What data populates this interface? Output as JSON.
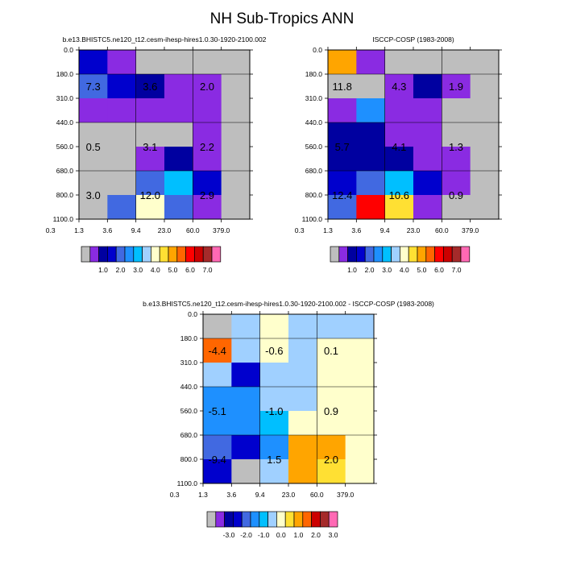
{
  "title": "NH Sub-Tropics ANN",
  "colors": {
    "missing": "#bebebe",
    "abs_scale": [
      "#8a2be2",
      "#0000a0",
      "#0000cd",
      "#4169e1",
      "#1e90ff",
      "#00bfff",
      "#a0d0ff",
      "#ffffcc",
      "#ffe033",
      "#ffa500",
      "#ff6600",
      "#ff0000",
      "#cc0000",
      "#a52a2a",
      "#ff69b4"
    ],
    "diff_scale": [
      "#8a2be2",
      "#0000a0",
      "#0000cd",
      "#4169e1",
      "#1e90ff",
      "#00bfff",
      "#a0d0ff",
      "#ffffcc",
      "#ffe033",
      "#ffa500",
      "#ff6600",
      "#cc0000",
      "#a52a2a",
      "#ff69b4"
    ]
  },
  "chart_data": [
    {
      "type": "heatmap",
      "title": "b.e13.BHISTC5.ne120_t12.cesm-ihesp-hires1.0.30-1920-2100.002",
      "x_ticks": [
        "0.3",
        "1.3",
        "3.6",
        "9.4",
        "23.0",
        "60.0",
        "379.0"
      ],
      "y_ticks": [
        "0.0",
        "180.0",
        "310.0",
        "440.0",
        "560.0",
        "680.0",
        "800.0",
        "1100.0"
      ],
      "cell_colors": [
        [
          "#0000cd",
          "#8a2be2",
          "#bebebe",
          "#bebebe",
          "#bebebe",
          "#bebebe"
        ],
        [
          "#4169e1",
          "#0000cd",
          "#0000a0",
          "#8a2be2",
          "#8a2be2",
          "#bebebe"
        ],
        [
          "#8a2be2",
          "#8a2be2",
          "#8a2be2",
          "#8a2be2",
          "#8a2be2",
          "#bebebe"
        ],
        [
          "#bebebe",
          "#bebebe",
          "#bebebe",
          "#bebebe",
          "#8a2be2",
          "#bebebe"
        ],
        [
          "#bebebe",
          "#bebebe",
          "#8a2be2",
          "#0000a0",
          "#8a2be2",
          "#bebebe"
        ],
        [
          "#bebebe",
          "#bebebe",
          "#4169e1",
          "#00bfff",
          "#0000cd",
          "#bebebe"
        ],
        [
          "#bebebe",
          "#4169e1",
          "#ffffcc",
          "#4169e1",
          "#8a2be2",
          "#bebebe"
        ]
      ],
      "labels": [
        {
          "text": "7.3",
          "col": 0.5,
          "row": 1.5
        },
        {
          "text": "3.6",
          "col": 2.5,
          "row": 1.5
        },
        {
          "text": "2.0",
          "col": 4.5,
          "row": 1.5
        },
        {
          "text": "0.5",
          "col": 0.5,
          "row": 4.0
        },
        {
          "text": "3.1",
          "col": 2.5,
          "row": 4.0
        },
        {
          "text": "2.2",
          "col": 4.5,
          "row": 4.0
        },
        {
          "text": "3.0",
          "col": 0.5,
          "row": 6.0
        },
        {
          "text": "12.0",
          "col": 2.5,
          "row": 6.0
        },
        {
          "text": "2.9",
          "col": 4.5,
          "row": 6.0
        }
      ]
    },
    {
      "type": "heatmap",
      "title": "ISCCP-COSP (1983-2008)",
      "x_ticks": [
        "0.3",
        "1.3",
        "3.6",
        "9.4",
        "23.0",
        "60.0",
        "379.0"
      ],
      "y_ticks": [
        "0.0",
        "180.0",
        "310.0",
        "440.0",
        "560.0",
        "680.0",
        "800.0",
        "1100.0"
      ],
      "cell_colors": [
        [
          "#ffa500",
          "#8a2be2",
          "#bebebe",
          "#bebebe",
          "#bebebe",
          "#bebebe"
        ],
        [
          "#bebebe",
          "#bebebe",
          "#8a2be2",
          "#0000a0",
          "#8a2be2",
          "#bebebe"
        ],
        [
          "#8a2be2",
          "#1e90ff",
          "#8a2be2",
          "#8a2be2",
          "#bebebe",
          "#bebebe"
        ],
        [
          "#0000a0",
          "#0000a0",
          "#8a2be2",
          "#8a2be2",
          "#bebebe",
          "#bebebe"
        ],
        [
          "#0000a0",
          "#0000a0",
          "#0000a0",
          "#8a2be2",
          "#8a2be2",
          "#bebebe"
        ],
        [
          "#0000cd",
          "#4169e1",
          "#00bfff",
          "#0000cd",
          "#8a2be2",
          "#bebebe"
        ],
        [
          "#4169e1",
          "#ff0000",
          "#ffe033",
          "#8a2be2",
          "#bebebe",
          "#bebebe"
        ]
      ],
      "labels": [
        {
          "text": "11.8",
          "col": 0.5,
          "row": 1.5
        },
        {
          "text": "4.3",
          "col": 2.5,
          "row": 1.5
        },
        {
          "text": "1.9",
          "col": 4.5,
          "row": 1.5
        },
        {
          "text": "5.7",
          "col": 0.5,
          "row": 4.0
        },
        {
          "text": "4.1",
          "col": 2.5,
          "row": 4.0
        },
        {
          "text": "1.3",
          "col": 4.5,
          "row": 4.0
        },
        {
          "text": "12.4",
          "col": 0.5,
          "row": 6.0
        },
        {
          "text": "10.6",
          "col": 2.5,
          "row": 6.0
        },
        {
          "text": "0.9",
          "col": 4.5,
          "row": 6.0
        }
      ]
    },
    {
      "type": "heatmap",
      "title": "b.e13.BHISTC5.ne120_t12.cesm-ihesp-hires1.0.30-1920-2100.002 - ISCCP-COSP (1983-2008)",
      "x_ticks": [
        "0.3",
        "1.3",
        "3.6",
        "9.4",
        "23.0",
        "60.0",
        "379.0"
      ],
      "y_ticks": [
        "0.0",
        "180.0",
        "310.0",
        "440.0",
        "560.0",
        "680.0",
        "800.0",
        "1100.0"
      ],
      "cell_colors": [
        [
          "#bebebe",
          "#a0d0ff",
          "#ffffcc",
          "#a0d0ff",
          "#a0d0ff",
          "#a0d0ff"
        ],
        [
          "#ff6600",
          "#a0d0ff",
          "#ffffcc",
          "#a0d0ff",
          "#ffffcc",
          "#ffffcc"
        ],
        [
          "#a0d0ff",
          "#0000cd",
          "#a0d0ff",
          "#a0d0ff",
          "#ffffcc",
          "#ffffcc"
        ],
        [
          "#1e90ff",
          "#1e90ff",
          "#a0d0ff",
          "#a0d0ff",
          "#ffffcc",
          "#ffffcc"
        ],
        [
          "#1e90ff",
          "#1e90ff",
          "#00bfff",
          "#ffffcc",
          "#ffffcc",
          "#ffffcc"
        ],
        [
          "#4169e1",
          "#0000cd",
          "#1e90ff",
          "#ffa500",
          "#ffa500",
          "#ffffcc"
        ],
        [
          "#0000cd",
          "#bebebe",
          "#a0d0ff",
          "#ffa500",
          "#ffe033",
          "#ffffcc"
        ]
      ],
      "labels": [
        {
          "text": "-4.4",
          "col": 0.5,
          "row": 1.5
        },
        {
          "text": "-0.6",
          "col": 2.5,
          "row": 1.5
        },
        {
          "text": "0.1",
          "col": 4.5,
          "row": 1.5
        },
        {
          "text": "-5.1",
          "col": 0.5,
          "row": 4.0
        },
        {
          "text": "-1.0",
          "col": 2.5,
          "row": 4.0
        },
        {
          "text": "0.9",
          "col": 4.5,
          "row": 4.0
        },
        {
          "text": "-9.4",
          "col": 0.5,
          "row": 6.0
        },
        {
          "text": "1.5",
          "col": 2.5,
          "row": 6.0
        },
        {
          "text": "2.0",
          "col": 4.5,
          "row": 6.0
        }
      ]
    }
  ],
  "colorbars": [
    {
      "labels": [
        "1.0",
        "2.0",
        "3.0",
        "4.0",
        "5.0",
        "6.0",
        "7.0"
      ]
    },
    {
      "labels": [
        "1.0",
        "2.0",
        "3.0",
        "4.0",
        "5.0",
        "6.0",
        "7.0"
      ]
    },
    {
      "labels": [
        "-3.0",
        "-2.0",
        "-1.0",
        "0.0",
        "1.0",
        "2.0",
        "3.0"
      ]
    }
  ]
}
